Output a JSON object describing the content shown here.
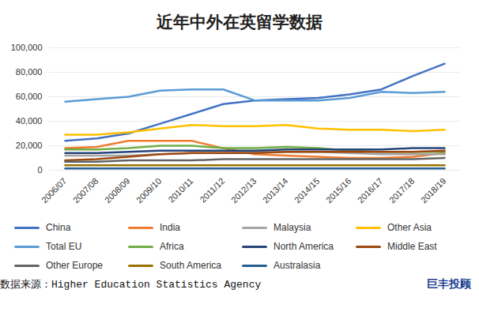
{
  "chart_data": {
    "type": "line",
    "title": "近年中外在英留学数据",
    "source": "数据来源：Higher Education Statistics Agency",
    "brand": "巨丰投顾",
    "categories": [
      "2006/07",
      "2007/08",
      "2008/09",
      "2009/10",
      "2010/11",
      "2011/12",
      "2012/13",
      "2013/14",
      "2014/15",
      "2015/16",
      "2016/17",
      "2017/18",
      "2018/19"
    ],
    "series": [
      {
        "name": "China",
        "color": "#4472c4",
        "values": [
          24000,
          26000,
          30000,
          38000,
          46000,
          54000,
          57000,
          58000,
          59000,
          62000,
          66000,
          77000,
          87000
        ]
      },
      {
        "name": "India",
        "color": "#ed7d31",
        "values": [
          18000,
          19000,
          24000,
          24000,
          24000,
          18000,
          13000,
          12000,
          11000,
          10000,
          10000,
          11000,
          14000
        ]
      },
      {
        "name": "Malaysia",
        "color": "#a5a5a5",
        "values": [
          12000,
          12000,
          12000,
          13000,
          14000,
          14000,
          15000,
          15000,
          15000,
          14000,
          13000,
          13000,
          13000
        ]
      },
      {
        "name": "Other Asia",
        "color": "#ffc000",
        "values": [
          29000,
          29000,
          31000,
          34000,
          37000,
          36000,
          36000,
          37000,
          34000,
          33000,
          33000,
          32000,
          33000
        ]
      },
      {
        "name": "Total EU",
        "color": "#5b9bd5",
        "values": [
          56000,
          58000,
          60000,
          65000,
          66000,
          66000,
          57000,
          57000,
          57000,
          59000,
          64000,
          63000,
          64000
        ]
      },
      {
        "name": "Africa",
        "color": "#70ad47",
        "values": [
          17000,
          17000,
          18000,
          20000,
          20000,
          18000,
          18000,
          19000,
          18000,
          16000,
          15000,
          15000,
          15000
        ]
      },
      {
        "name": "North America",
        "color": "#264478",
        "values": [
          14000,
          14000,
          15000,
          16000,
          16000,
          16000,
          16000,
          17000,
          17000,
          17000,
          17000,
          18000,
          18000
        ]
      },
      {
        "name": "Middle East",
        "color": "#9e480e",
        "values": [
          8000,
          9000,
          11000,
          13000,
          14000,
          14000,
          14000,
          15000,
          15000,
          15000,
          15000,
          15000,
          16000
        ]
      },
      {
        "name": "Other Europe",
        "color": "#636363",
        "values": [
          7000,
          7000,
          8000,
          8000,
          8000,
          9000,
          9000,
          9000,
          9000,
          9000,
          9000,
          9000,
          10000
        ]
      },
      {
        "name": "South America",
        "color": "#997300",
        "values": [
          4000,
          4000,
          4000,
          4000,
          4000,
          4000,
          4000,
          4000,
          4000,
          4000,
          4000,
          4000,
          4000
        ]
      },
      {
        "name": "Australasia",
        "color": "#255e91",
        "values": [
          1500,
          1500,
          1500,
          1500,
          1500,
          1500,
          1500,
          1500,
          1500,
          1500,
          1500,
          1500,
          1500
        ]
      }
    ],
    "ylim": [
      0,
      100000
    ],
    "yticks": [
      0,
      {
        "value": 20000,
        "label": "20,000"
      },
      {
        "value": 40000,
        "label": "40,000"
      },
      {
        "value": 60000,
        "label": "60,000"
      },
      {
        "value": 80000,
        "label": "80,000"
      },
      {
        "value": 100000,
        "label": "100,000"
      }
    ],
    "grid": true,
    "legend": "bottom"
  }
}
